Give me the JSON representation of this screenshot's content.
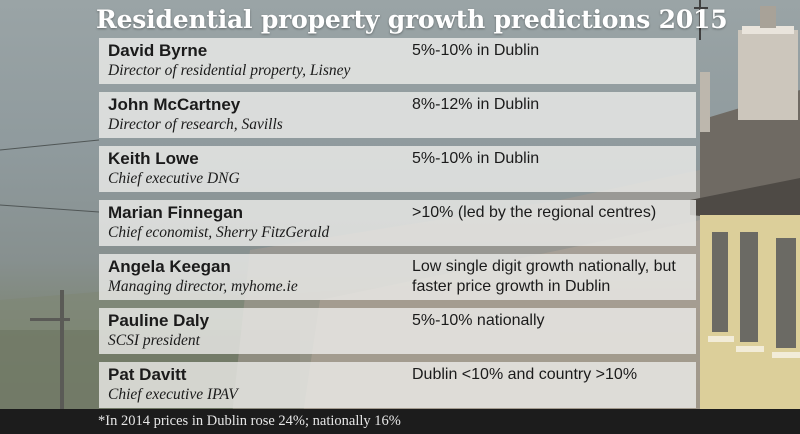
{
  "title": "Residential property growth predictions 2015",
  "rows": [
    {
      "name": "David Byrne",
      "role": "Director of residential property, Lisney",
      "prediction": "5%-10% in Dublin"
    },
    {
      "name": "John McCartney",
      "role": "Director of research, Savills",
      "prediction": "8%-12% in Dublin"
    },
    {
      "name": "Keith Lowe",
      "role": "Chief executive DNG",
      "prediction": "5%-10% in Dublin"
    },
    {
      "name": "Marian Finnegan",
      "role": "Chief economist, Sherry FitzGerald",
      "prediction": ">10% (led by the regional centres)"
    },
    {
      "name": "Angela Keegan",
      "role": "Managing director, myhome.ie",
      "prediction": "Low single digit growth nationally, but faster price growth in Dublin"
    },
    {
      "name": "Pauline Daly",
      "role": "SCSI president",
      "prediction": "5%-10% nationally"
    },
    {
      "name": "Pat Davitt",
      "role": "Chief executive IPAV",
      "prediction": "Dublin <10% and country >10%"
    }
  ],
  "footnote": "*In 2014 prices in Dublin rose 24%; nationally 16%"
}
